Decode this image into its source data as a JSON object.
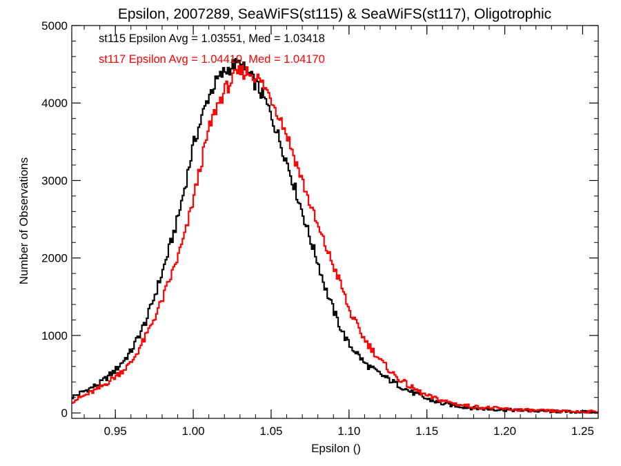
{
  "chart_data": {
    "type": "line",
    "title": "Epsilon, 2007289, SeaWiFS(st115) & SeaWiFS(st117), Oligotrophic",
    "xlabel": "Epsilon ()",
    "ylabel": "Number of Observations",
    "xlim": [
      0.922,
      1.26
    ],
    "ylim": [
      -70,
      5000
    ],
    "xticks": [
      0.95,
      1.0,
      1.05,
      1.1,
      1.15,
      1.2,
      1.25
    ],
    "xtick_labels": [
      "0.95",
      "1.00",
      "1.05",
      "1.10",
      "1.15",
      "1.20",
      "1.25"
    ],
    "yticks": [
      0,
      1000,
      2000,
      3000,
      4000,
      5000
    ],
    "ytick_labels": [
      "0",
      "1000",
      "2000",
      "3000",
      "4000",
      "5000"
    ],
    "grid": false,
    "step": true,
    "annotations": [
      {
        "text": "st115 Epsilon Avg = 1.03551, Med = 1.03418",
        "color": "#000000"
      },
      {
        "text": "st117 Epsilon Avg = 1.04410, Med = 1.04170",
        "color": "#ff0000"
      }
    ],
    "series": [
      {
        "color": "#000000",
        "x": [
          0.922,
          0.93,
          0.94,
          0.95,
          0.96,
          0.97,
          0.98,
          0.99,
          0.995,
          1.0,
          1.005,
          1.01,
          1.015,
          1.02,
          1.025,
          1.03,
          1.035,
          1.04,
          1.045,
          1.05,
          1.055,
          1.06,
          1.065,
          1.07,
          1.075,
          1.08,
          1.085,
          1.09,
          1.095,
          1.1,
          1.105,
          1.11,
          1.12,
          1.13,
          1.14,
          1.15,
          1.16,
          1.17,
          1.18,
          1.2,
          1.22,
          1.24,
          1.26
        ],
        "y": [
          200,
          280,
          380,
          550,
          790,
          1200,
          1800,
          2500,
          2950,
          3450,
          3780,
          4100,
          4280,
          4400,
          4480,
          4500,
          4380,
          4250,
          4080,
          3850,
          3550,
          3250,
          2920,
          2600,
          2250,
          1950,
          1600,
          1330,
          1080,
          880,
          780,
          640,
          500,
          380,
          270,
          180,
          120,
          90,
          60,
          40,
          25,
          15,
          10
        ]
      },
      {
        "color": "#ff0000",
        "x": [
          0.922,
          0.93,
          0.94,
          0.95,
          0.96,
          0.97,
          0.98,
          0.99,
          0.995,
          1.0,
          1.005,
          1.01,
          1.015,
          1.02,
          1.025,
          1.03,
          1.035,
          1.04,
          1.045,
          1.05,
          1.055,
          1.06,
          1.065,
          1.07,
          1.075,
          1.08,
          1.085,
          1.09,
          1.095,
          1.1,
          1.105,
          1.11,
          1.12,
          1.13,
          1.14,
          1.15,
          1.16,
          1.17,
          1.18,
          1.2,
          1.22,
          1.24,
          1.26
        ],
        "y": [
          150,
          220,
          320,
          470,
          640,
          1000,
          1450,
          2000,
          2320,
          2750,
          3220,
          3650,
          3950,
          4150,
          4300,
          4400,
          4400,
          4350,
          4230,
          4070,
          3850,
          3600,
          3300,
          3000,
          2700,
          2400,
          2150,
          1900,
          1650,
          1330,
          1130,
          950,
          680,
          470,
          330,
          220,
          160,
          110,
          80,
          50,
          30,
          20,
          15
        ]
      }
    ]
  }
}
